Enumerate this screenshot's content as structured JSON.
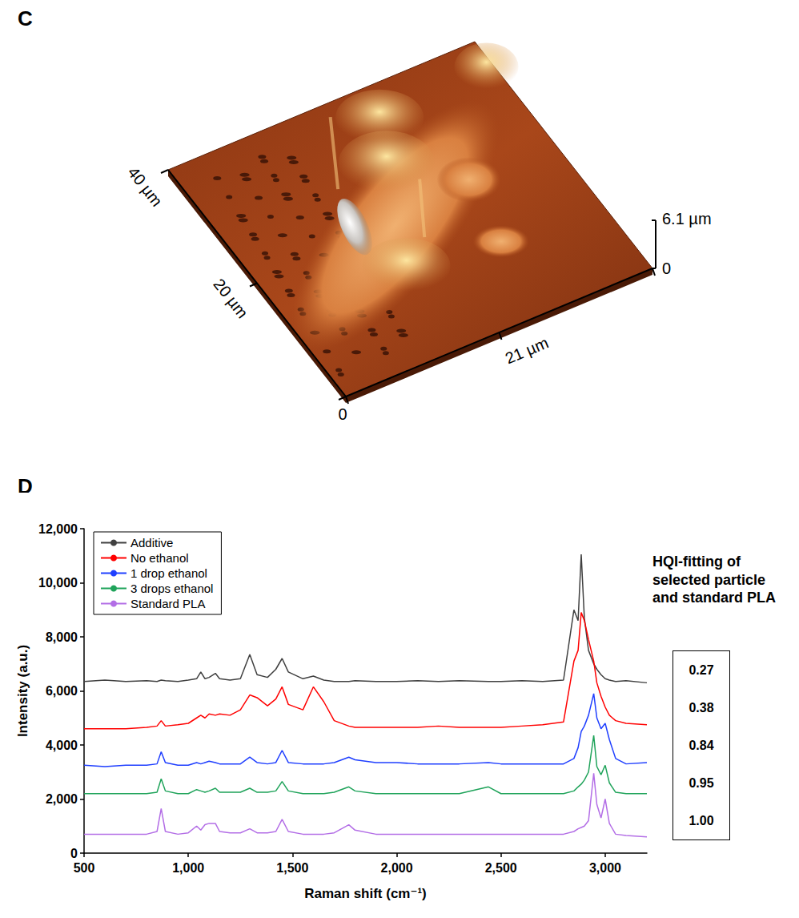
{
  "afm_image": {
    "letter": "C",
    "origin_label": "0",
    "left_axis_labels": [
      "20 µm",
      "40 µm"
    ],
    "bottom_axis_labels": [
      "21 µm"
    ],
    "height_scale_labels": [
      "6.1 µm",
      "0"
    ]
  },
  "chart_data": {
    "letter": "D",
    "type": "line",
    "x_label": "Raman shift (cm⁻¹)",
    "y_label": "Intensity (a.u.)",
    "xlim": [
      500,
      3200
    ],
    "xticks": [
      500,
      1000,
      1500,
      2000,
      2500,
      3000
    ],
    "ylim": [
      0,
      12000
    ],
    "yticks": [
      0,
      2000,
      4000,
      6000,
      8000,
      10000,
      12000
    ],
    "legend": "upper left",
    "x": [
      500,
      600,
      700,
      800,
      850,
      870,
      890,
      950,
      1000,
      1040,
      1060,
      1080,
      1100,
      1130,
      1150,
      1200,
      1250,
      1295,
      1330,
      1380,
      1420,
      1450,
      1480,
      1550,
      1600,
      1650,
      1700,
      1770,
      1800,
      1900,
      2000,
      2100,
      2200,
      2300,
      2440,
      2500,
      2600,
      2700,
      2800,
      2850,
      2870,
      2885,
      2900,
      2920,
      2945,
      2960,
      2980,
      3000,
      3020,
      3050,
      3100,
      3200
    ],
    "series": [
      {
        "name": "Additive",
        "color": "#404040",
        "values": [
          6350,
          6400,
          6350,
          6380,
          6350,
          6400,
          6380,
          6350,
          6400,
          6450,
          6700,
          6450,
          6500,
          6650,
          6450,
          6400,
          6450,
          7350,
          6600,
          6500,
          6800,
          7200,
          6700,
          6450,
          6550,
          6400,
          6350,
          6350,
          6380,
          6350,
          6350,
          6380,
          6350,
          6380,
          6350,
          6350,
          6380,
          6350,
          6400,
          9000,
          8600,
          11050,
          8700,
          7500,
          7000,
          6800,
          6600,
          6450,
          6400,
          6350,
          6380,
          6300
        ]
      },
      {
        "name": "No ethanol",
        "color": "#ff0000",
        "values": [
          4600,
          4600,
          4600,
          4650,
          4700,
          4900,
          4700,
          4750,
          4800,
          5000,
          5100,
          5000,
          5150,
          5100,
          5150,
          5100,
          5300,
          5850,
          5750,
          5450,
          5700,
          6150,
          5500,
          5300,
          6150,
          5600,
          4900,
          4700,
          4650,
          4650,
          4650,
          4650,
          4700,
          4650,
          4650,
          4650,
          4700,
          4750,
          4850,
          7100,
          7500,
          8900,
          8600,
          7900,
          7100,
          6300,
          5800,
          5400,
          5100,
          4900,
          4800,
          4750
        ]
      },
      {
        "name": "1 drop ethanol",
        "color": "#1f3fff",
        "values": [
          3250,
          3200,
          3250,
          3250,
          3300,
          3750,
          3350,
          3250,
          3250,
          3350,
          3300,
          3350,
          3400,
          3350,
          3300,
          3300,
          3300,
          3550,
          3350,
          3300,
          3350,
          3800,
          3350,
          3300,
          3300,
          3300,
          3350,
          3550,
          3450,
          3350,
          3350,
          3300,
          3300,
          3300,
          3350,
          3300,
          3300,
          3300,
          3300,
          3500,
          3900,
          4500,
          4700,
          5100,
          5900,
          5000,
          4600,
          4800,
          4200,
          3500,
          3300,
          3350
        ]
      },
      {
        "name": "3 drops ethanol",
        "color": "#1fa35a",
        "values": [
          2200,
          2200,
          2200,
          2200,
          2250,
          2750,
          2300,
          2200,
          2200,
          2350,
          2300,
          2250,
          2300,
          2400,
          2250,
          2250,
          2250,
          2400,
          2250,
          2250,
          2300,
          2650,
          2300,
          2200,
          2200,
          2200,
          2250,
          2450,
          2300,
          2200,
          2200,
          2200,
          2200,
          2200,
          2450,
          2200,
          2200,
          2200,
          2200,
          2300,
          2450,
          2550,
          2700,
          3000,
          4350,
          3200,
          2900,
          3250,
          2600,
          2250,
          2200,
          2200
        ]
      },
      {
        "name": "Standard PLA",
        "color": "#b36ee6",
        "values": [
          700,
          700,
          700,
          700,
          800,
          1650,
          800,
          700,
          750,
          1000,
          850,
          1050,
          1100,
          1100,
          800,
          750,
          750,
          900,
          750,
          750,
          800,
          1250,
          800,
          700,
          700,
          700,
          750,
          1050,
          850,
          700,
          700,
          700,
          700,
          700,
          700,
          700,
          700,
          700,
          700,
          800,
          900,
          950,
          1000,
          1200,
          2950,
          1800,
          1300,
          2000,
          1100,
          700,
          650,
          600
        ]
      }
    ],
    "annotation": {
      "title": "HQI-fitting of selected particle and standard PLA",
      "values": [
        0.27,
        0.38,
        0.84,
        0.95,
        1.0
      ],
      "value_labels": [
        "0.27",
        "0.38",
        "0.84",
        "0.95",
        "1.00"
      ]
    }
  }
}
